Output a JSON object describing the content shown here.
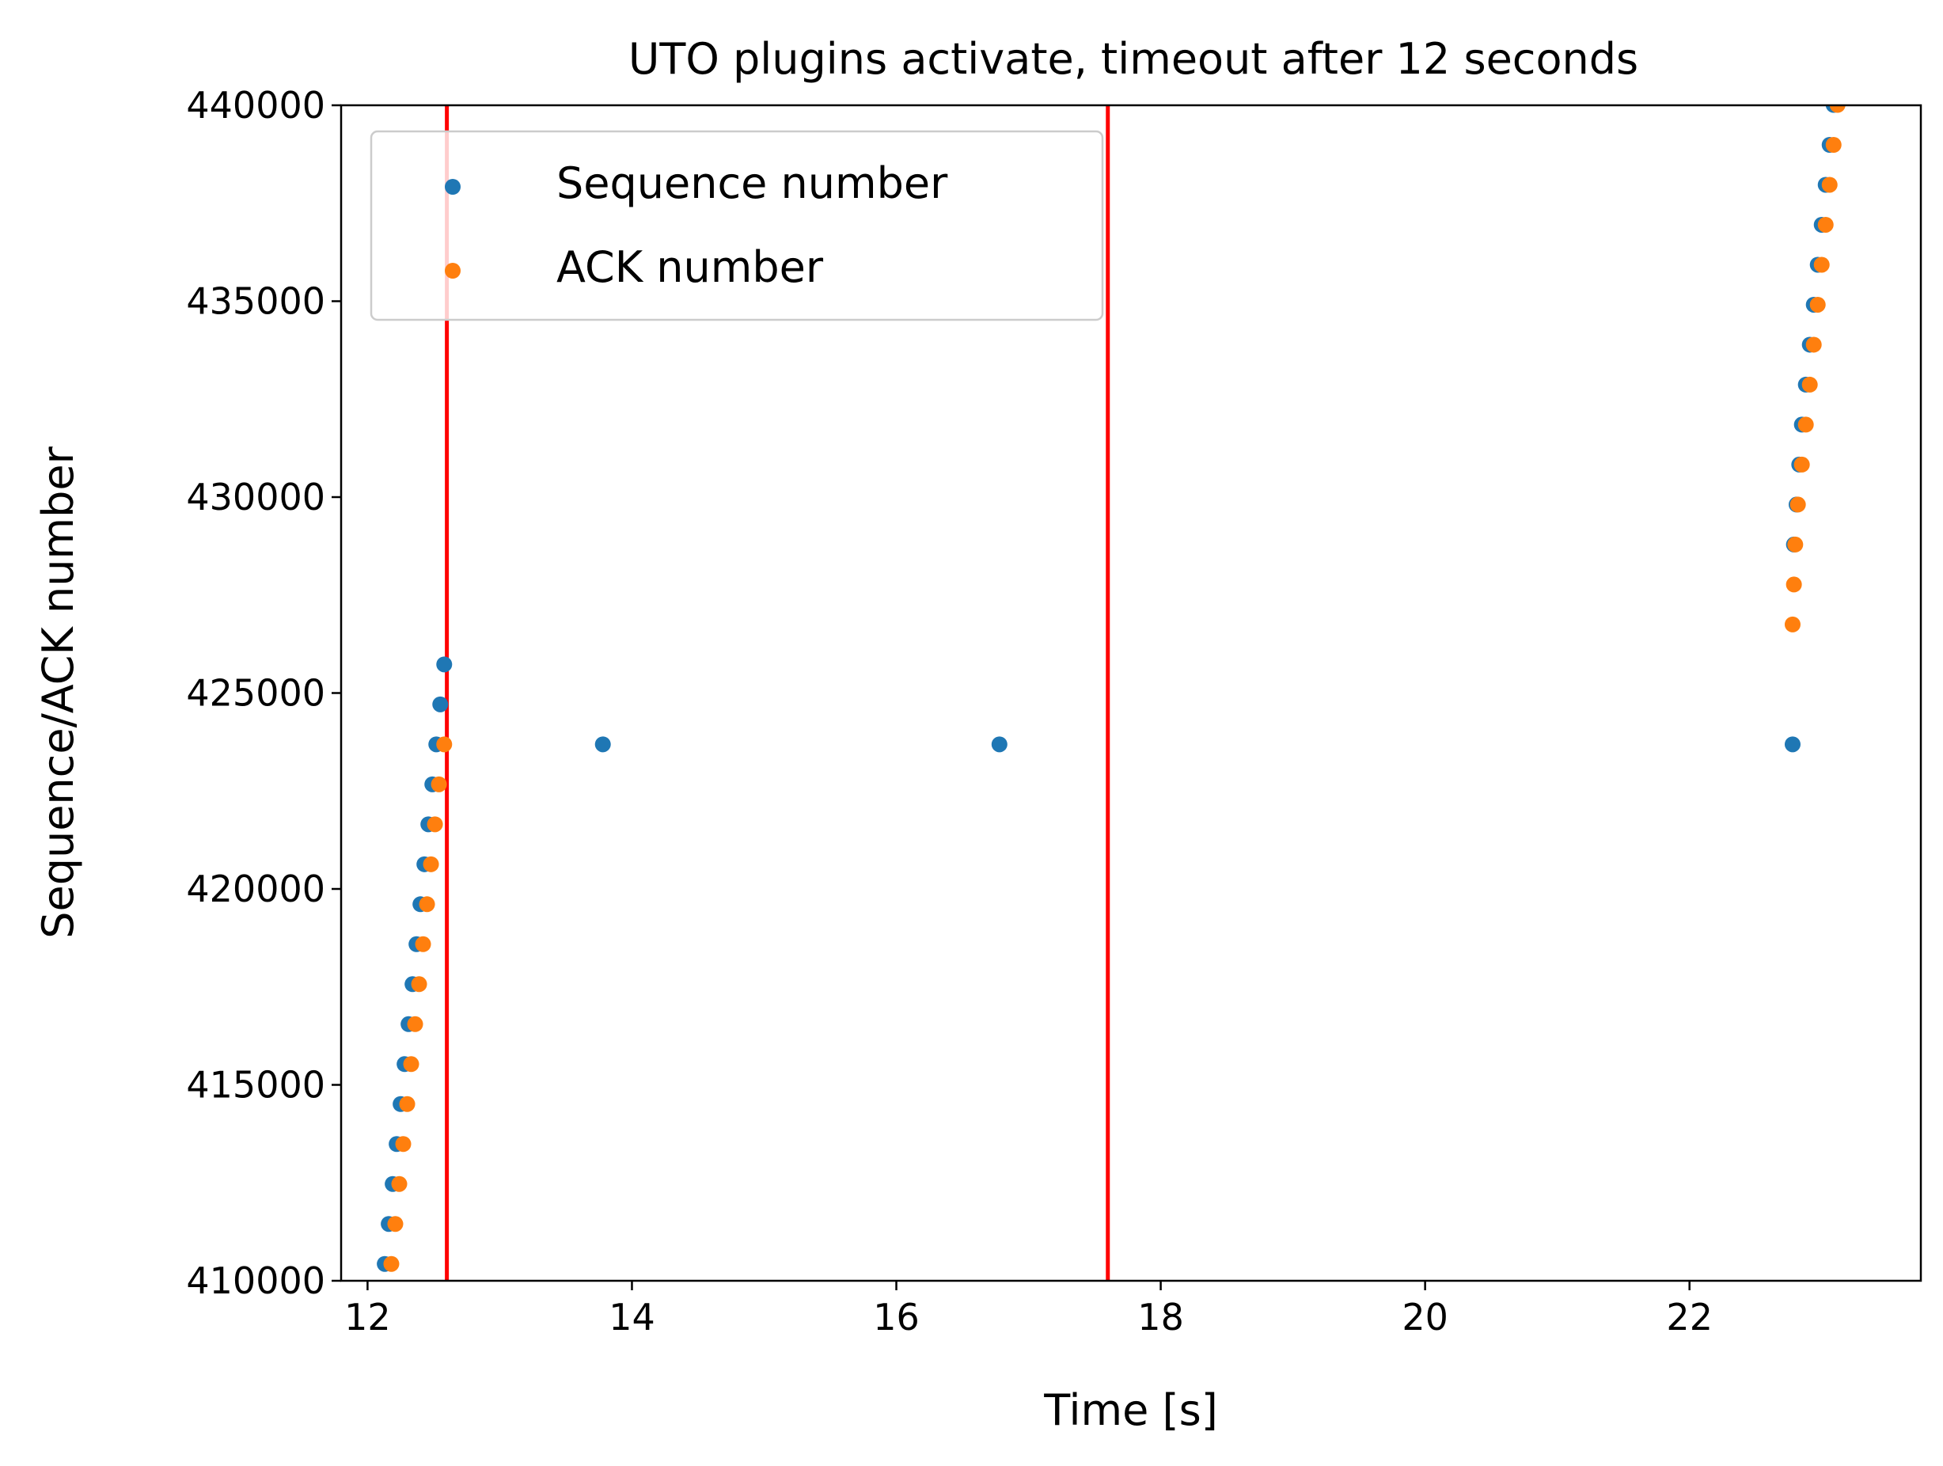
{
  "chart_data": {
    "type": "scatter",
    "title": "UTO plugins activate, timeout after 12 seconds",
    "xlabel": "Time [s]",
    "ylabel": "Sequence/ACK number",
    "xlim": [
      11.8,
      23.75
    ],
    "ylim": [
      410000,
      440000
    ],
    "xticks": [
      12,
      14,
      16,
      18,
      20,
      22
    ],
    "yticks": [
      410000,
      415000,
      420000,
      425000,
      430000,
      435000,
      440000
    ],
    "grid": false,
    "legend_position": "top-left",
    "vlines": [
      {
        "x": 12.6,
        "color": "#ff0000"
      },
      {
        "x": 17.6,
        "color": "#ff0000"
      }
    ],
    "series": [
      {
        "name": "Sequence number",
        "color": "#1f77b4",
        "points": [
          [
            12.13,
            410430
          ],
          [
            12.16,
            411450
          ],
          [
            12.19,
            412470
          ],
          [
            12.22,
            413490
          ],
          [
            12.25,
            414510
          ],
          [
            12.28,
            415530
          ],
          [
            12.31,
            416550
          ],
          [
            12.34,
            417570
          ],
          [
            12.37,
            418590
          ],
          [
            12.4,
            419610
          ],
          [
            12.43,
            420630
          ],
          [
            12.46,
            421650
          ],
          [
            12.49,
            422670
          ],
          [
            12.52,
            423690
          ],
          [
            12.55,
            424710
          ],
          [
            12.58,
            425730
          ],
          [
            13.78,
            423690
          ],
          [
            16.78,
            423690
          ],
          [
            22.78,
            423690
          ],
          [
            22.79,
            428790
          ],
          [
            22.81,
            429810
          ],
          [
            22.83,
            430830
          ],
          [
            22.85,
            431850
          ],
          [
            22.88,
            432870
          ],
          [
            22.91,
            433890
          ],
          [
            22.94,
            434910
          ],
          [
            22.97,
            435930
          ],
          [
            23.0,
            436950
          ],
          [
            23.03,
            437970
          ],
          [
            23.06,
            438990
          ],
          [
            23.09,
            440010
          ]
        ]
      },
      {
        "name": "ACK number",
        "color": "#ff7f0e",
        "points": [
          [
            12.18,
            410430
          ],
          [
            12.21,
            411450
          ],
          [
            12.24,
            412470
          ],
          [
            12.27,
            413490
          ],
          [
            12.3,
            414510
          ],
          [
            12.33,
            415530
          ],
          [
            12.36,
            416550
          ],
          [
            12.39,
            417570
          ],
          [
            12.42,
            418590
          ],
          [
            12.45,
            419610
          ],
          [
            12.48,
            420630
          ],
          [
            12.51,
            421650
          ],
          [
            12.54,
            422670
          ],
          [
            12.58,
            423690
          ],
          [
            22.78,
            426750
          ],
          [
            22.79,
            427770
          ],
          [
            22.8,
            428790
          ],
          [
            22.82,
            429810
          ],
          [
            22.85,
            430830
          ],
          [
            22.88,
            431850
          ],
          [
            22.91,
            432870
          ],
          [
            22.94,
            433890
          ],
          [
            22.97,
            434910
          ],
          [
            23.0,
            435930
          ],
          [
            23.03,
            436950
          ],
          [
            23.06,
            437970
          ],
          [
            23.09,
            438990
          ],
          [
            23.12,
            440010
          ]
        ]
      }
    ]
  }
}
